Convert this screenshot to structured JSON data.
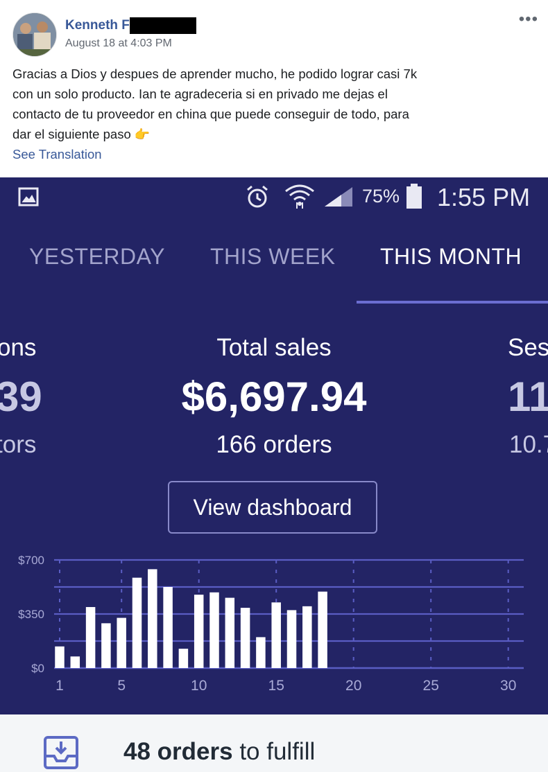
{
  "post": {
    "author": "Kenneth F",
    "timestamp": "August 18 at 4:03 PM",
    "more_label": "•••",
    "body_lines": [
      "Gracias a Dios y despues de aprender mucho, he podido lograr casi 7k",
      "con un solo producto. Ian te agradeceria si en privado me dejas el",
      "contacto de tu proveedor en china que puede conseguir de todo, para",
      "dar el siguiente paso"
    ],
    "emoji": "👉",
    "see_translation": "See Translation"
  },
  "status_bar": {
    "battery_pct": "75%",
    "time": "1:55 PM",
    "icons": [
      "gallery-icon",
      "alarm-icon",
      "wifi-icon",
      "signal-icon",
      "battery-icon"
    ]
  },
  "tabs": [
    {
      "label": "YESTERDAY",
      "active": false
    },
    {
      "label": "THIS WEEK",
      "active": false
    },
    {
      "label": "THIS MONTH",
      "active": true
    }
  ],
  "metrics": {
    "left": {
      "label": "ons",
      "value": "39",
      "sub": "tors"
    },
    "center": {
      "label": "Total sales",
      "value": "$6,697.94",
      "sub": "166 orders"
    },
    "right": {
      "label": "Ses",
      "value": "11",
      "sub": "10.7"
    }
  },
  "view_dashboard": "View dashboard",
  "chart_data": {
    "type": "bar",
    "x": [
      1,
      2,
      3,
      4,
      5,
      6,
      7,
      8,
      9,
      10,
      11,
      12,
      13,
      14,
      15,
      16,
      17,
      18
    ],
    "values": [
      140,
      75,
      395,
      290,
      325,
      585,
      640,
      525,
      125,
      475,
      490,
      455,
      390,
      200,
      425,
      375,
      400,
      495
    ],
    "xlim": [
      1,
      31
    ],
    "ylim": [
      0,
      700
    ],
    "x_tick_labels": [
      "1",
      "5",
      "10",
      "15",
      "20",
      "25",
      "30"
    ],
    "y_tick_labels": [
      "$0",
      "$350",
      "$700"
    ],
    "grid": true,
    "bar_color": "#ffffff",
    "grid_color": "#5a5dc4"
  },
  "fulfill": {
    "count": "48 orders",
    "rest": " to fulfill"
  },
  "colors": {
    "phone_bg": "#232465",
    "facebook_link": "#385898",
    "tab_underline": "#6b6dd1"
  }
}
